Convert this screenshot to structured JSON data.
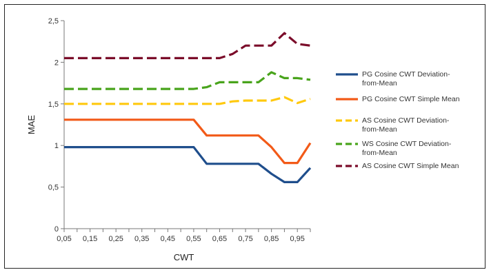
{
  "chart_data": {
    "type": "line",
    "title": "",
    "xlabel": "CWT",
    "ylabel": "MAE",
    "x_ticks": [
      "0,05",
      "0,15",
      "0,25",
      "0,35",
      "0,45",
      "0,55",
      "0,65",
      "0,75",
      "0,85",
      "0,95"
    ],
    "y_ticks": [
      "0",
      "0,5",
      "1",
      "1,5",
      "2",
      "2,5"
    ],
    "xlim": [
      0.05,
      1.0
    ],
    "ylim": [
      0,
      2.5
    ],
    "grid": "none",
    "legend_position": "right",
    "series": [
      {
        "name": "PG Cosine CWT Deviation-from-Mean",
        "color": "#1f4e8c",
        "dash": "solid",
        "x": [
          0.05,
          0.1,
          0.15,
          0.2,
          0.25,
          0.3,
          0.35,
          0.4,
          0.45,
          0.5,
          0.55,
          0.6,
          0.65,
          0.7,
          0.75,
          0.8,
          0.85,
          0.9,
          0.95,
          1.0
        ],
        "y": [
          0.98,
          0.98,
          0.98,
          0.98,
          0.98,
          0.98,
          0.98,
          0.98,
          0.98,
          0.98,
          0.98,
          0.78,
          0.78,
          0.78,
          0.78,
          0.78,
          0.66,
          0.56,
          0.56,
          0.73
        ]
      },
      {
        "name": "PG Cosine CWT Simple Mean",
        "color": "#f25a18",
        "dash": "solid",
        "x": [
          0.05,
          0.1,
          0.15,
          0.2,
          0.25,
          0.3,
          0.35,
          0.4,
          0.45,
          0.5,
          0.55,
          0.6,
          0.65,
          0.7,
          0.75,
          0.8,
          0.85,
          0.9,
          0.95,
          1.0
        ],
        "y": [
          1.31,
          1.31,
          1.31,
          1.31,
          1.31,
          1.31,
          1.31,
          1.31,
          1.31,
          1.31,
          1.31,
          1.12,
          1.12,
          1.12,
          1.12,
          1.12,
          0.98,
          0.79,
          0.79,
          1.03
        ]
      },
      {
        "name": "AS Cosine CWT Deviation-from-Mean",
        "color": "#ffc90e",
        "dash": "dashed",
        "x": [
          0.05,
          0.1,
          0.15,
          0.2,
          0.25,
          0.3,
          0.35,
          0.4,
          0.45,
          0.5,
          0.55,
          0.6,
          0.65,
          0.7,
          0.75,
          0.8,
          0.85,
          0.9,
          0.95,
          1.0
        ],
        "y": [
          1.5,
          1.5,
          1.5,
          1.5,
          1.5,
          1.5,
          1.5,
          1.5,
          1.5,
          1.5,
          1.5,
          1.5,
          1.5,
          1.53,
          1.54,
          1.54,
          1.54,
          1.58,
          1.51,
          1.56
        ]
      },
      {
        "name": "WS Cosine CWT Deviation-from-Mean",
        "color": "#49a41c",
        "dash": "dashed",
        "x": [
          0.05,
          0.1,
          0.15,
          0.2,
          0.25,
          0.3,
          0.35,
          0.4,
          0.45,
          0.5,
          0.55,
          0.6,
          0.65,
          0.7,
          0.75,
          0.8,
          0.85,
          0.9,
          0.95,
          1.0
        ],
        "y": [
          1.68,
          1.68,
          1.68,
          1.68,
          1.68,
          1.68,
          1.68,
          1.68,
          1.68,
          1.68,
          1.68,
          1.7,
          1.76,
          1.76,
          1.76,
          1.76,
          1.88,
          1.81,
          1.81,
          1.79
        ]
      },
      {
        "name": "AS Cosine CWT Simple Mean",
        "color": "#7b0c2a",
        "dash": "dashed",
        "x": [
          0.05,
          0.1,
          0.15,
          0.2,
          0.25,
          0.3,
          0.35,
          0.4,
          0.45,
          0.5,
          0.55,
          0.6,
          0.65,
          0.7,
          0.75,
          0.8,
          0.85,
          0.9,
          0.95,
          1.0
        ],
        "y": [
          2.05,
          2.05,
          2.05,
          2.05,
          2.05,
          2.05,
          2.05,
          2.05,
          2.05,
          2.05,
          2.05,
          2.05,
          2.05,
          2.1,
          2.2,
          2.2,
          2.2,
          2.35,
          2.22,
          2.2
        ]
      }
    ]
  }
}
